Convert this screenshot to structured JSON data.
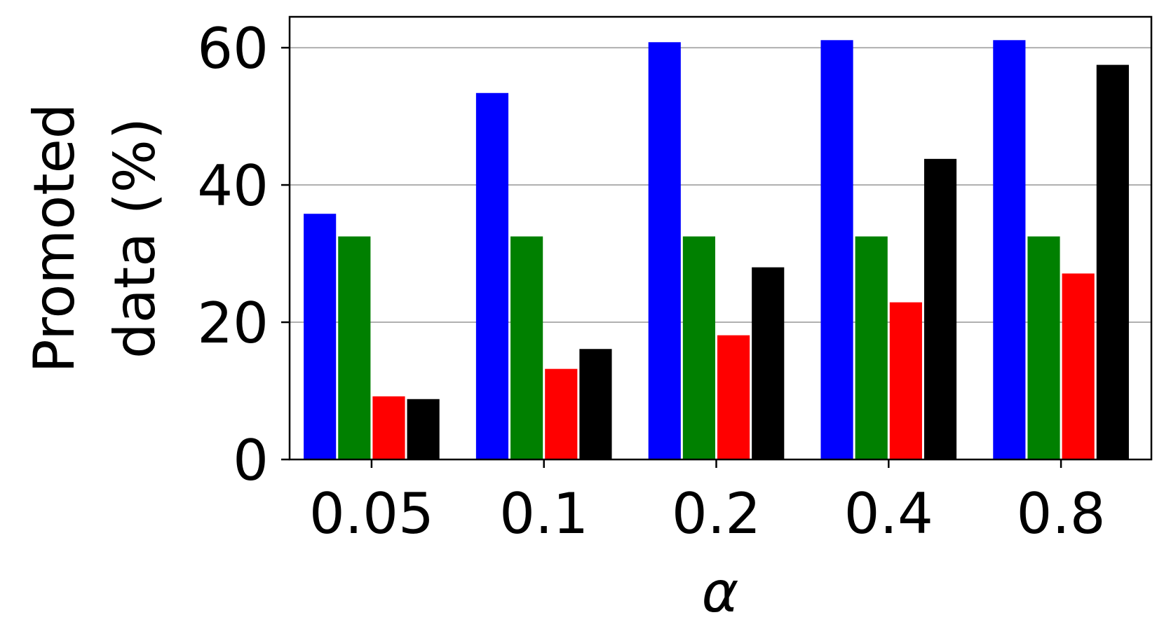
{
  "chart_data": {
    "type": "bar",
    "xlabel": "α",
    "ylabel_lines": [
      "Promoted",
      "data (%)"
    ],
    "categories": [
      "0.05",
      "0.1",
      "0.2",
      "0.4",
      "0.8"
    ],
    "ylim": [
      0,
      64.5
    ],
    "yticks": [
      "0",
      "20",
      "40",
      "60"
    ],
    "grid": "horizontal",
    "series": [
      {
        "color": "#0000ff",
        "values": [
          35.8,
          53.4,
          60.8,
          61.1,
          61.1
        ]
      },
      {
        "color": "#008000",
        "values": [
          32.5,
          32.5,
          32.5,
          32.5,
          32.5
        ]
      },
      {
        "color": "#ff0000",
        "values": [
          9.2,
          13.2,
          18.1,
          22.9,
          27.1
        ]
      },
      {
        "color": "#000000",
        "values": [
          8.8,
          16.1,
          28.0,
          43.8,
          57.5
        ]
      }
    ]
  }
}
